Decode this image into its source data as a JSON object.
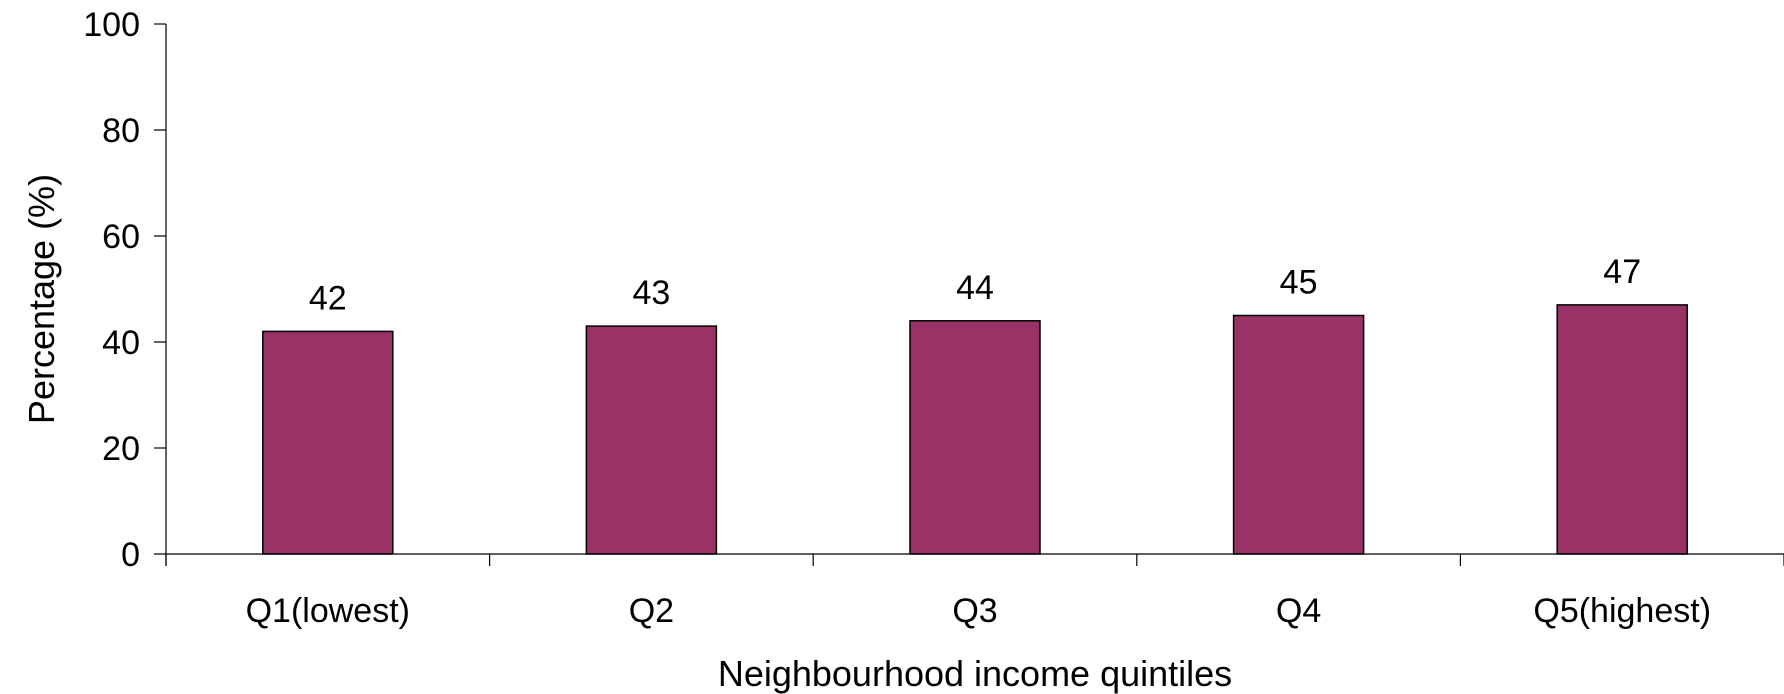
{
  "chart_data": {
    "type": "bar",
    "categories": [
      "Q1(lowest)",
      "Q2",
      "Q3",
      "Q4",
      "Q5(highest)"
    ],
    "values": [
      42,
      43,
      44,
      45,
      47
    ],
    "data_labels": [
      "42",
      "43",
      "44",
      "45",
      "47"
    ],
    "xlabel": "Neighbourhood income quintiles",
    "ylabel": "Percentage (%)",
    "ylim": [
      0,
      100
    ],
    "yticks": [
      0,
      20,
      40,
      60,
      80,
      100
    ],
    "grid": false,
    "bar_color": "#993366",
    "bar_edge_color": "#000000"
  }
}
